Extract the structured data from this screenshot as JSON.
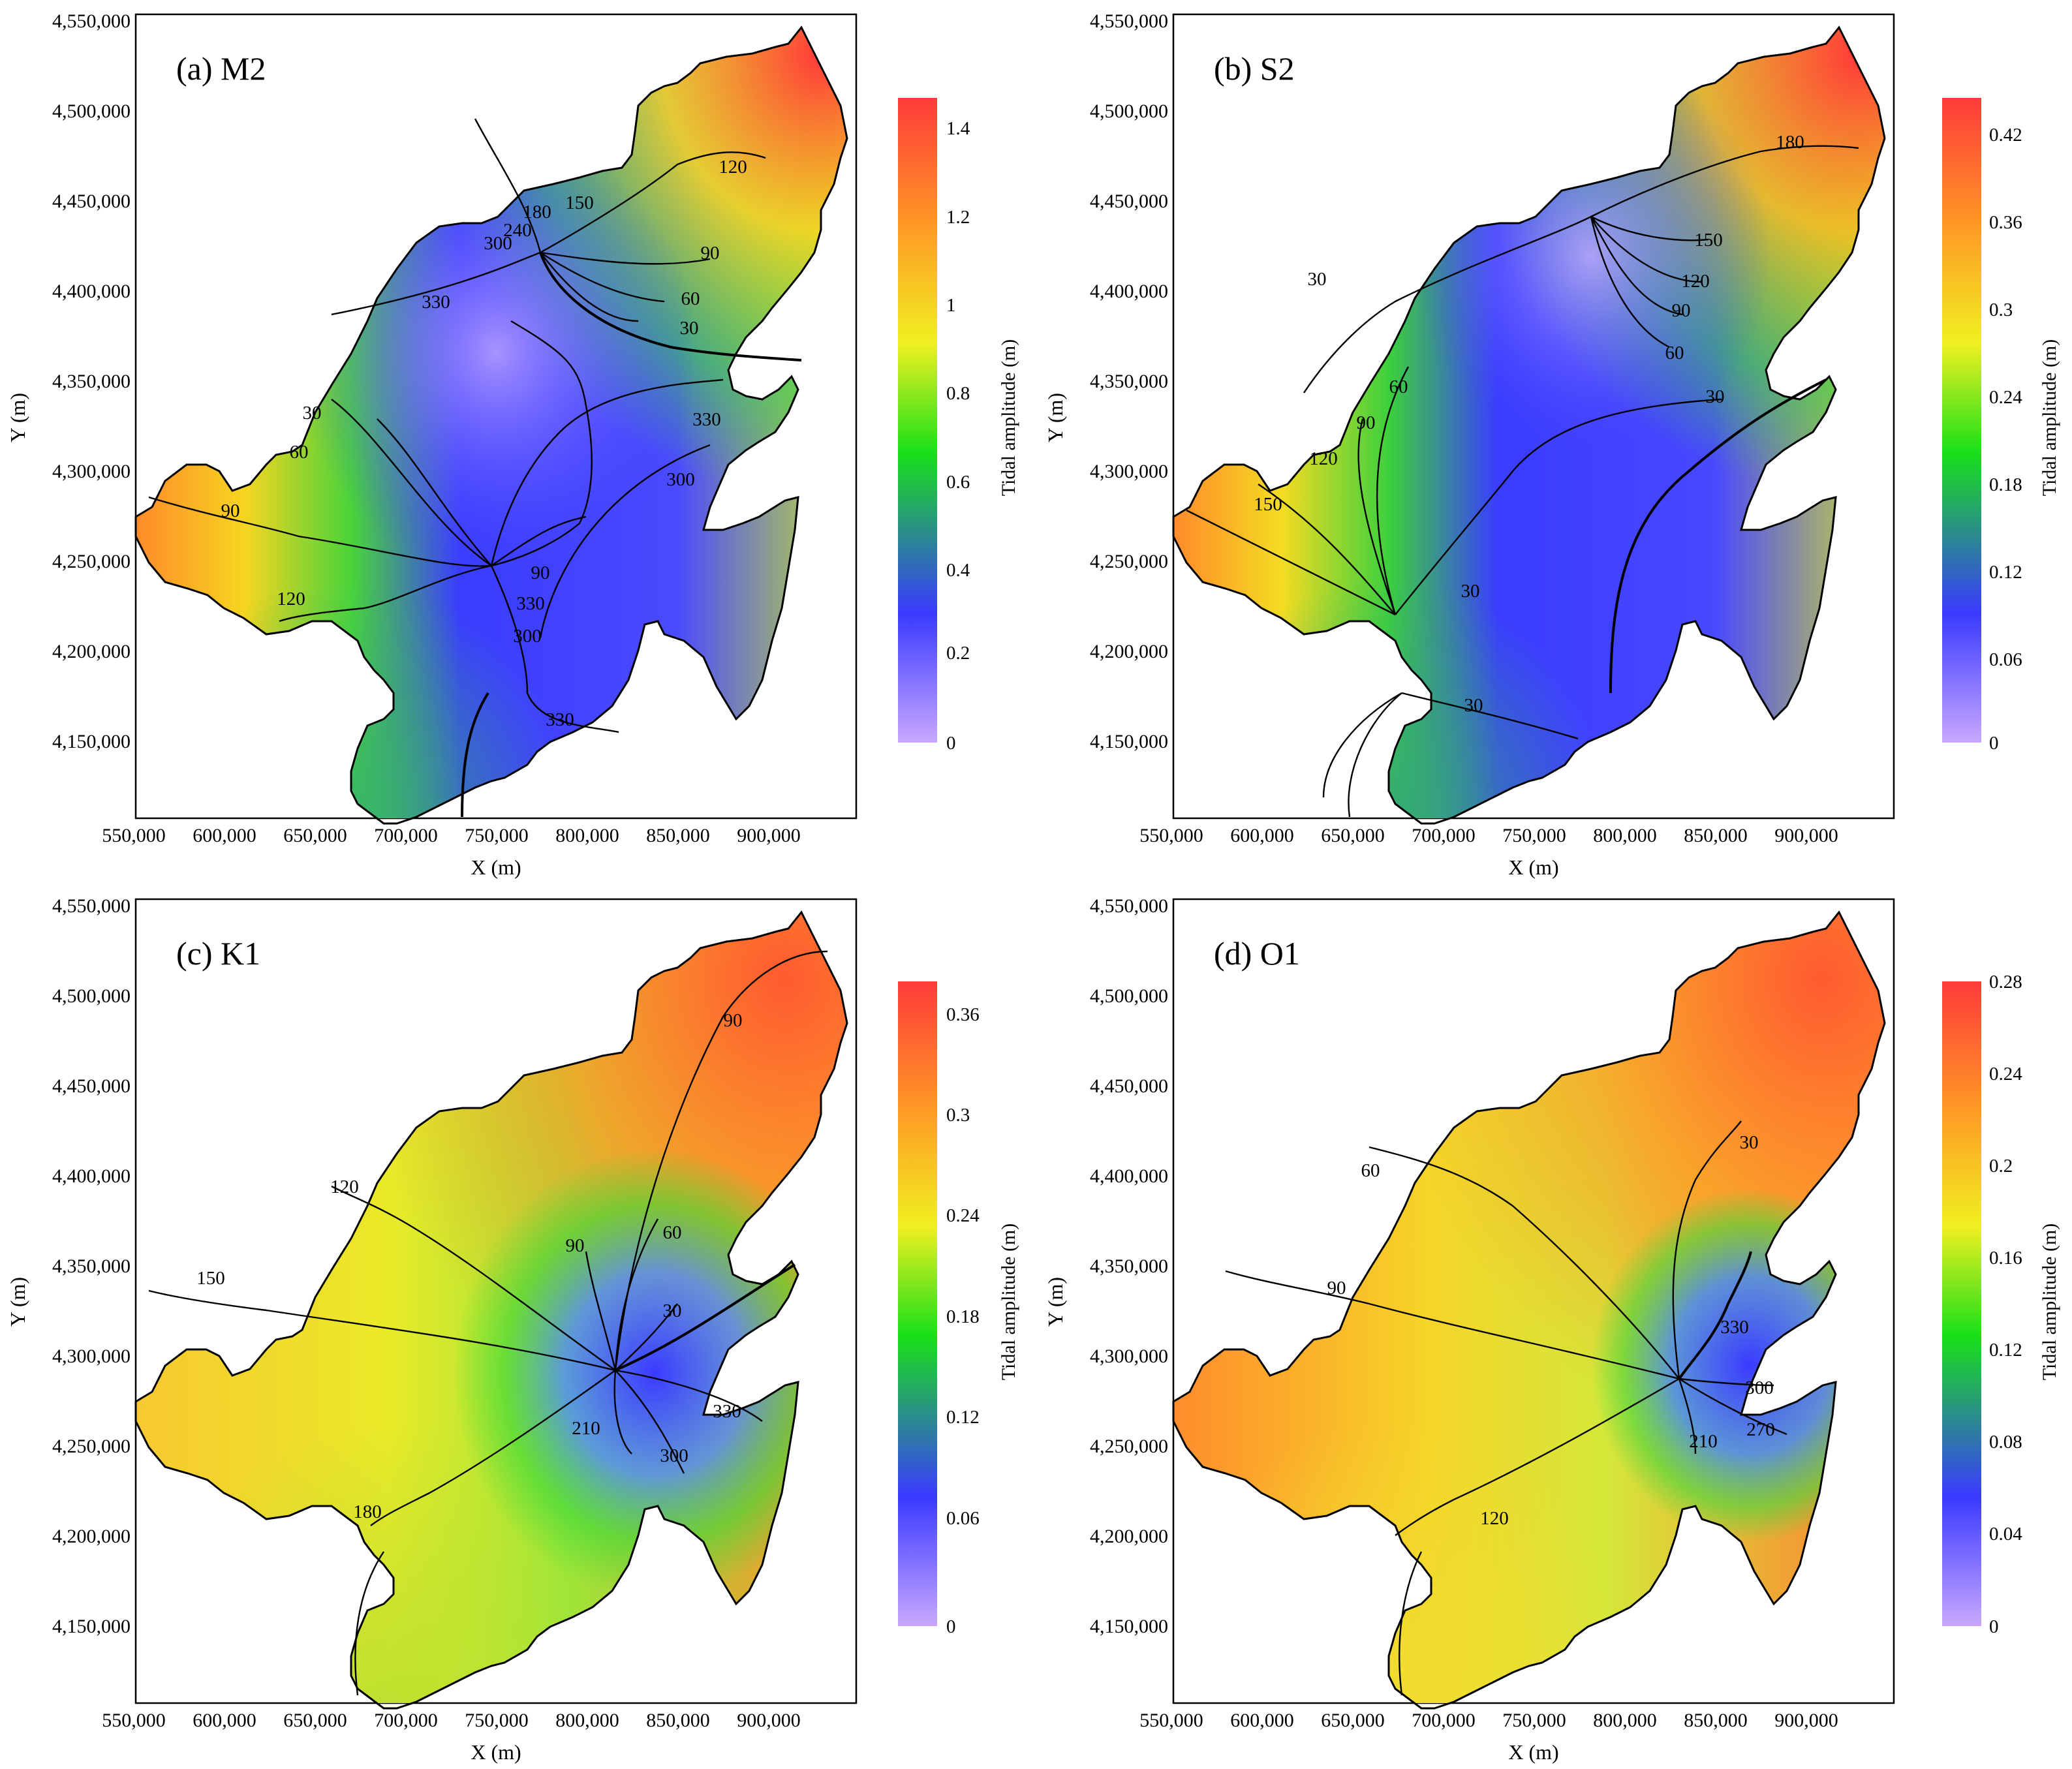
{
  "figure": {
    "colorbar_gradient": [
      "#c8a8ff",
      "#3a3aff",
      "#19e019",
      "#f0f020",
      "#ff9a25",
      "#ff3a3a"
    ],
    "coast_color": "#000000",
    "panels": [
      {
        "id": "M2",
        "label": "(a) M2",
        "xlabel": "X (m)",
        "ylabel": "Y (m)",
        "xticks": [
          "550,000",
          "600,000",
          "650,000",
          "700,000",
          "750,000",
          "800,000",
          "850,000",
          "900,000"
        ],
        "yticks": [
          "4,550,000",
          "4,500,000",
          "4,450,000",
          "4,400,000",
          "4,350,000",
          "4,300,000",
          "4,250,000",
          "4,200,000",
          "4,150,000"
        ],
        "colorbar_title": "Tidal amplitude (m)",
        "colorbar_ticks": [
          "1.4",
          "1.2",
          "1",
          "0.8",
          "0.6",
          "0.4",
          "0.2",
          "0"
        ],
        "contour_labels": [
          "180",
          "150",
          "120",
          "90",
          "60",
          "30",
          "240",
          "300",
          "330",
          "330",
          "300",
          "30",
          "60",
          "90",
          "120",
          "90",
          "330",
          "300",
          "330"
        ]
      },
      {
        "id": "S2",
        "label": "(b) S2",
        "xlabel": "X (m)",
        "ylabel": "Y (m)",
        "xticks": [
          "550,000",
          "600,000",
          "650,000",
          "700,000",
          "750,000",
          "800,000",
          "850,000",
          "900,000"
        ],
        "yticks": [
          "4,550,000",
          "4,500,000",
          "4,450,000",
          "4,400,000",
          "4,350,000",
          "4,300,000",
          "4,250,000",
          "4,200,000",
          "4,150,000"
        ],
        "colorbar_title": "Tidal amplitude (m)",
        "colorbar_ticks": [
          "0.42",
          "0.36",
          "0.3",
          "0.24",
          "0.18",
          "0.12",
          "0.06",
          "0"
        ],
        "contour_labels": [
          "180",
          "150",
          "120",
          "90",
          "60",
          "30",
          "60",
          "90",
          "120",
          "150",
          "30",
          "30",
          "30"
        ]
      },
      {
        "id": "K1",
        "label": "(c) K1",
        "xlabel": "X (m)",
        "ylabel": "Y (m)",
        "xticks": [
          "550,000",
          "600,000",
          "650,000",
          "700,000",
          "750,000",
          "800,000",
          "850,000",
          "900,000"
        ],
        "yticks": [
          "4,550,000",
          "4,500,000",
          "4,450,000",
          "4,400,000",
          "4,350,000",
          "4,300,000",
          "4,250,000",
          "4,200,000",
          "4,150,000"
        ],
        "colorbar_title": "Tidal amplitude (m)",
        "colorbar_ticks": [
          "0.36",
          "0.3",
          "0.24",
          "0.18",
          "0.12",
          "0.06",
          "0"
        ],
        "contour_labels": [
          "90",
          "120",
          "150",
          "60",
          "90",
          "30",
          "330",
          "300",
          "210",
          "180"
        ]
      },
      {
        "id": "O1",
        "label": "(d) O1",
        "xlabel": "X (m)",
        "ylabel": "Y (m)",
        "xticks": [
          "550,000",
          "600,000",
          "650,000",
          "700,000",
          "750,000",
          "800,000",
          "850,000",
          "900,000"
        ],
        "yticks": [
          "4,550,000",
          "4,500,000",
          "4,450,000",
          "4,400,000",
          "4,350,000",
          "4,300,000",
          "4,250,000",
          "4,200,000",
          "4,150,000"
        ],
        "colorbar_title": "Tidal amplitude (m)",
        "colorbar_ticks": [
          "0.28",
          "0.24",
          "0.2",
          "0.16",
          "0.12",
          "0.08",
          "0.04",
          "0"
        ],
        "contour_labels": [
          "30",
          "60",
          "90",
          "330",
          "300",
          "270",
          "210",
          "120"
        ]
      }
    ]
  }
}
